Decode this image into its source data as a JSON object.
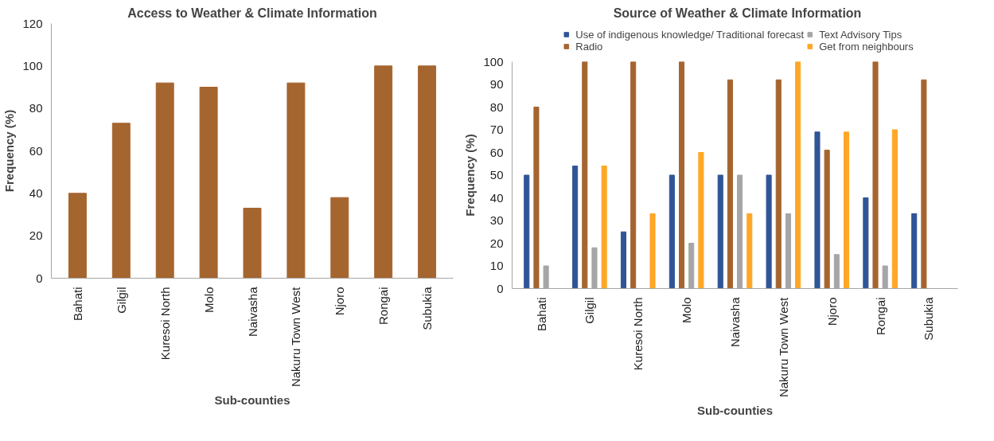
{
  "chart_data": [
    {
      "type": "bar",
      "title": "Access to Weather & Climate Information",
      "xlabel": "Sub-counties",
      "ylabel": "Frequency (%)",
      "categories": [
        "Bahati",
        "Gilgil",
        "Kuresoi North",
        "Molo",
        "Naivasha",
        "Nakuru Town West",
        "Njoro",
        "Rongai",
        "Subukia"
      ],
      "series": [
        {
          "color": "#a5652f",
          "values": [
            40,
            73,
            92,
            90,
            33,
            92,
            38,
            100,
            100
          ]
        }
      ],
      "ylim": [
        0,
        120
      ],
      "yticks": [
        0,
        20,
        40,
        60,
        80,
        100,
        120
      ],
      "grid": false,
      "legend": false
    },
    {
      "type": "bar",
      "title": "Source of Weather & Climate Information",
      "xlabel": "Sub-counties",
      "ylabel": "Frequency (%)",
      "categories": [
        "Bahati",
        "Gilgil",
        "Kuresoi North",
        "Molo",
        "Naivasha",
        "Nakuru Town West",
        "Njoro",
        "Rongai",
        "Subukia"
      ],
      "series": [
        {
          "name": "Use of indigenous knowledge/ Traditional forecast",
          "color": "#2f5597",
          "values": [
            50,
            54,
            25,
            50,
            50,
            50,
            69,
            40,
            33
          ]
        },
        {
          "name": "Radio",
          "color": "#a5652f",
          "values": [
            80,
            100,
            100,
            100,
            92,
            92,
            61,
            100,
            92
          ]
        },
        {
          "name": "Text Advisory Tips",
          "color": "#a6a6a6",
          "values": [
            10,
            18,
            null,
            20,
            50,
            33,
            15,
            10,
            null
          ]
        },
        {
          "name": "Get from neighbours",
          "color": "#ffa726",
          "values": [
            null,
            54,
            33,
            60,
            33,
            100,
            69,
            70,
            null
          ]
        }
      ],
      "ylim": [
        0,
        100
      ],
      "yticks": [
        0,
        10,
        20,
        30,
        40,
        50,
        60,
        70,
        80,
        90,
        100
      ],
      "grid": false,
      "legend": "top"
    }
  ]
}
